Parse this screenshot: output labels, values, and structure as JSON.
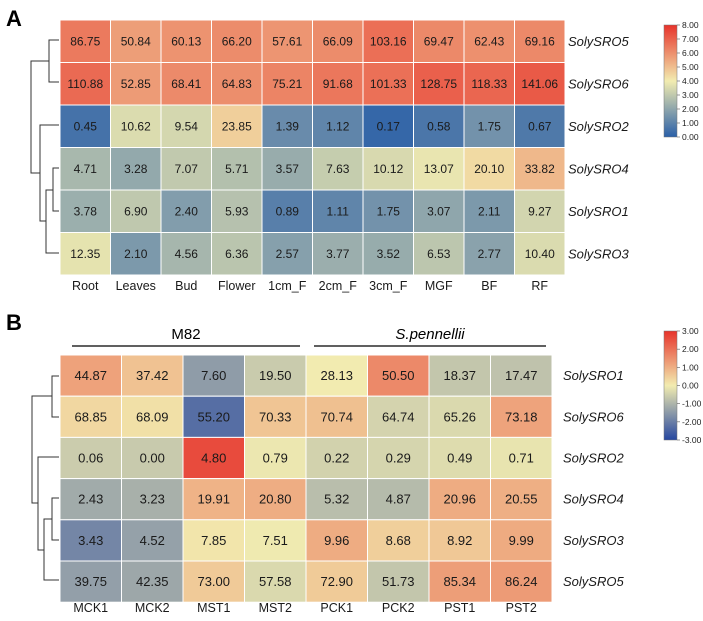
{
  "chart_data": [
    {
      "type": "heatmap",
      "panel_label": "A",
      "columns": [
        "Root",
        "Leaves",
        "Bud",
        "Flower",
        "1cm_F",
        "2cm_F",
        "3cm_F",
        "MGF",
        "BF",
        "RF"
      ],
      "rows": [
        "SolySRO5",
        "SolySRO6",
        "SolySRO2",
        "SolySRO4",
        "SolySRO1",
        "SolySRO3"
      ],
      "values": [
        [
          "86.75",
          "50.84",
          "60.13",
          "66.20",
          "57.61",
          "66.09",
          "103.16",
          "69.47",
          "62.43",
          "69.16"
        ],
        [
          "110.88",
          "52.85",
          "68.41",
          "64.83",
          "75.21",
          "91.68",
          "101.33",
          "128.75",
          "118.33",
          "141.06"
        ],
        [
          "0.45",
          "10.62",
          "9.54",
          "23.85",
          "1.39",
          "1.12",
          "0.17",
          "0.58",
          "1.75",
          "0.67"
        ],
        [
          "4.71",
          "3.28",
          "7.07",
          "5.71",
          "3.57",
          "7.63",
          "10.12",
          "13.07",
          "20.10",
          "33.82"
        ],
        [
          "3.78",
          "6.90",
          "2.40",
          "5.93",
          "0.89",
          "1.11",
          "1.75",
          "3.07",
          "2.11",
          "9.27"
        ],
        [
          "12.35",
          "2.10",
          "4.56",
          "6.36",
          "2.57",
          "3.77",
          "3.52",
          "6.53",
          "2.77",
          "10.40"
        ]
      ],
      "colorbar": {
        "ticks": [
          "8.00",
          "7.00",
          "6.00",
          "5.00",
          "4.00",
          "3.00",
          "2.00",
          "1.00",
          "0.00"
        ],
        "range": [
          0,
          8
        ],
        "scale": "log2",
        "colors": [
          "#2a5fa8",
          "#f2ecb0",
          "#e7332b"
        ]
      }
    },
    {
      "type": "heatmap",
      "panel_label": "B",
      "groups": [
        {
          "label": "M82",
          "italic": false,
          "span": [
            0,
            3
          ]
        },
        {
          "label": "S.pennellii",
          "italic": true,
          "span": [
            4,
            7
          ]
        }
      ],
      "columns": [
        "MCK1",
        "MCK2",
        "MST1",
        "MST2",
        "PCK1",
        "PCK2",
        "PST1",
        "PST2"
      ],
      "rows": [
        "SolySRO1",
        "SolySRO6",
        "SolySRO2",
        "SolySRO4",
        "SolySRO3",
        "SolySRO5"
      ],
      "values": [
        [
          "44.87",
          "37.42",
          "7.60",
          "19.50",
          "28.13",
          "50.50",
          "18.37",
          "17.47"
        ],
        [
          "68.85",
          "68.09",
          "55.20",
          "70.33",
          "70.74",
          "64.74",
          "65.26",
          "73.18"
        ],
        [
          "0.06",
          "0.00",
          "4.80",
          "0.79",
          "0.22",
          "0.29",
          "0.49",
          "0.71"
        ],
        [
          "2.43",
          "3.23",
          "19.91",
          "20.80",
          "5.32",
          "4.87",
          "20.96",
          "20.55"
        ],
        [
          "3.43",
          "4.52",
          "7.85",
          "7.51",
          "9.96",
          "8.68",
          "8.92",
          "9.99"
        ],
        [
          "39.75",
          "42.35",
          "73.00",
          "57.58",
          "72.90",
          "51.73",
          "85.34",
          "86.24"
        ]
      ],
      "colorbar": {
        "ticks": [
          "3.00",
          "2.00",
          "1.00",
          "0.00",
          "-1.00",
          "-2.00",
          "-3.00"
        ],
        "range": [
          -3,
          3
        ],
        "scale": "row z-score",
        "colors": [
          "#2546a0",
          "#f2ecb0",
          "#e7332b"
        ]
      }
    }
  ]
}
